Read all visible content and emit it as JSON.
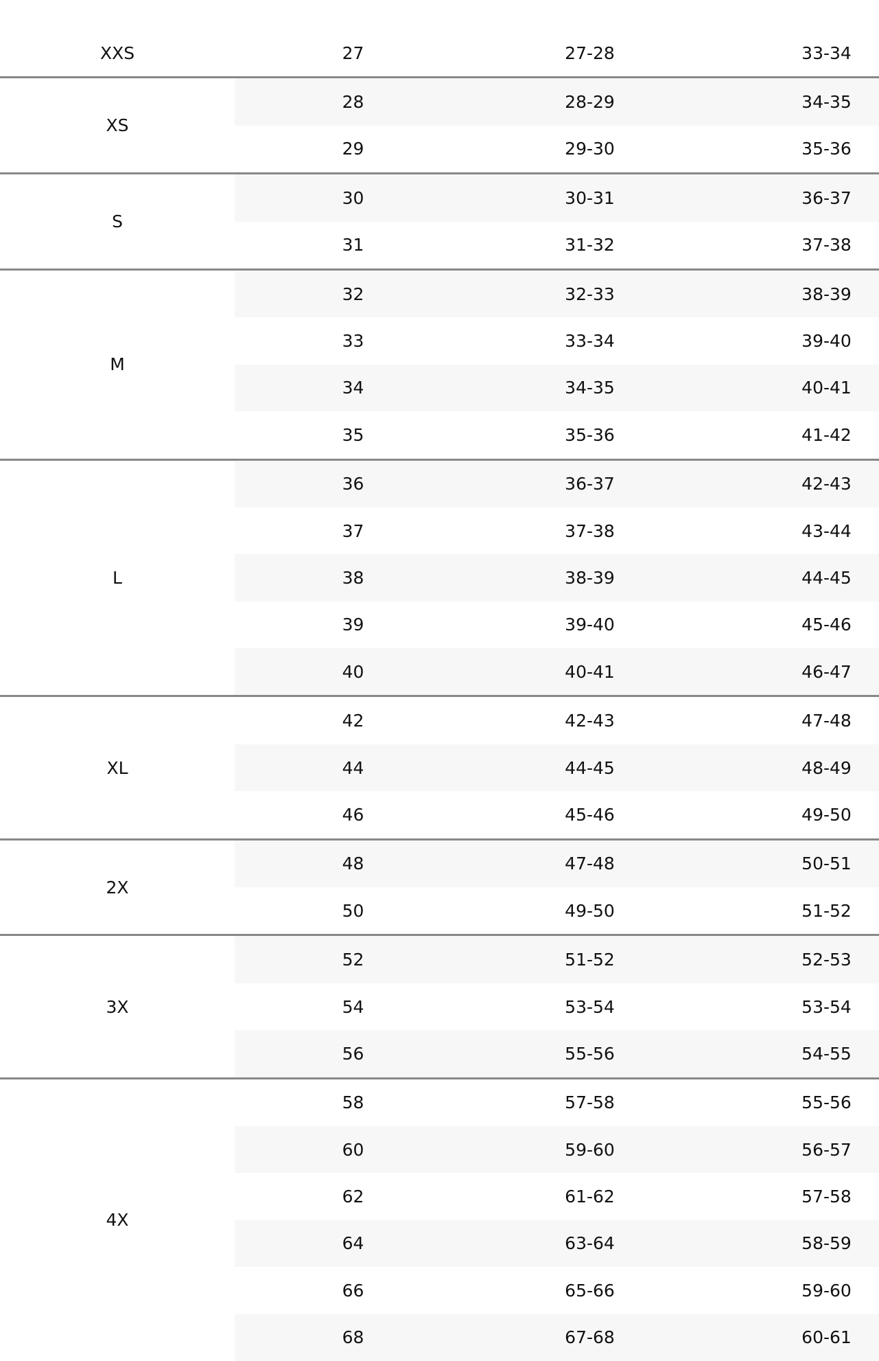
{
  "size_chart": {
    "groups": [
      {
        "size": "XXS",
        "rows": [
          [
            "27",
            "27-28",
            "33-34"
          ]
        ]
      },
      {
        "size": "XS",
        "rows": [
          [
            "28",
            "28-29",
            "34-35"
          ],
          [
            "29",
            "29-30",
            "35-36"
          ]
        ]
      },
      {
        "size": "S",
        "rows": [
          [
            "30",
            "30-31",
            "36-37"
          ],
          [
            "31",
            "31-32",
            "37-38"
          ]
        ]
      },
      {
        "size": "M",
        "rows": [
          [
            "32",
            "32-33",
            "38-39"
          ],
          [
            "33",
            "33-34",
            "39-40"
          ],
          [
            "34",
            "34-35",
            "40-41"
          ],
          [
            "35",
            "35-36",
            "41-42"
          ]
        ]
      },
      {
        "size": "L",
        "rows": [
          [
            "36",
            "36-37",
            "42-43"
          ],
          [
            "37",
            "37-38",
            "43-44"
          ],
          [
            "38",
            "38-39",
            "44-45"
          ],
          [
            "39",
            "39-40",
            "45-46"
          ],
          [
            "40",
            "40-41",
            "46-47"
          ]
        ]
      },
      {
        "size": "XL",
        "rows": [
          [
            "42",
            "42-43",
            "47-48"
          ],
          [
            "44",
            "44-45",
            "48-49"
          ],
          [
            "46",
            "45-46",
            "49-50"
          ]
        ]
      },
      {
        "size": "2X",
        "rows": [
          [
            "48",
            "47-48",
            "50-51"
          ],
          [
            "50",
            "49-50",
            "51-52"
          ]
        ]
      },
      {
        "size": "3X",
        "rows": [
          [
            "52",
            "51-52",
            "52-53"
          ],
          [
            "54",
            "53-54",
            "53-54"
          ],
          [
            "56",
            "55-56",
            "54-55"
          ]
        ]
      },
      {
        "size": "4X",
        "rows": [
          [
            "58",
            "57-58",
            "55-56"
          ],
          [
            "60",
            "59-60",
            "56-57"
          ],
          [
            "62",
            "61-62",
            "57-58"
          ],
          [
            "64",
            "63-64",
            "58-59"
          ],
          [
            "66",
            "65-66",
            "59-60"
          ],
          [
            "68",
            "67-68",
            "60-61"
          ]
        ]
      }
    ]
  },
  "colors": {
    "row_shade": "#f7f7f7",
    "group_divider": "#888888",
    "text": "#111111"
  }
}
